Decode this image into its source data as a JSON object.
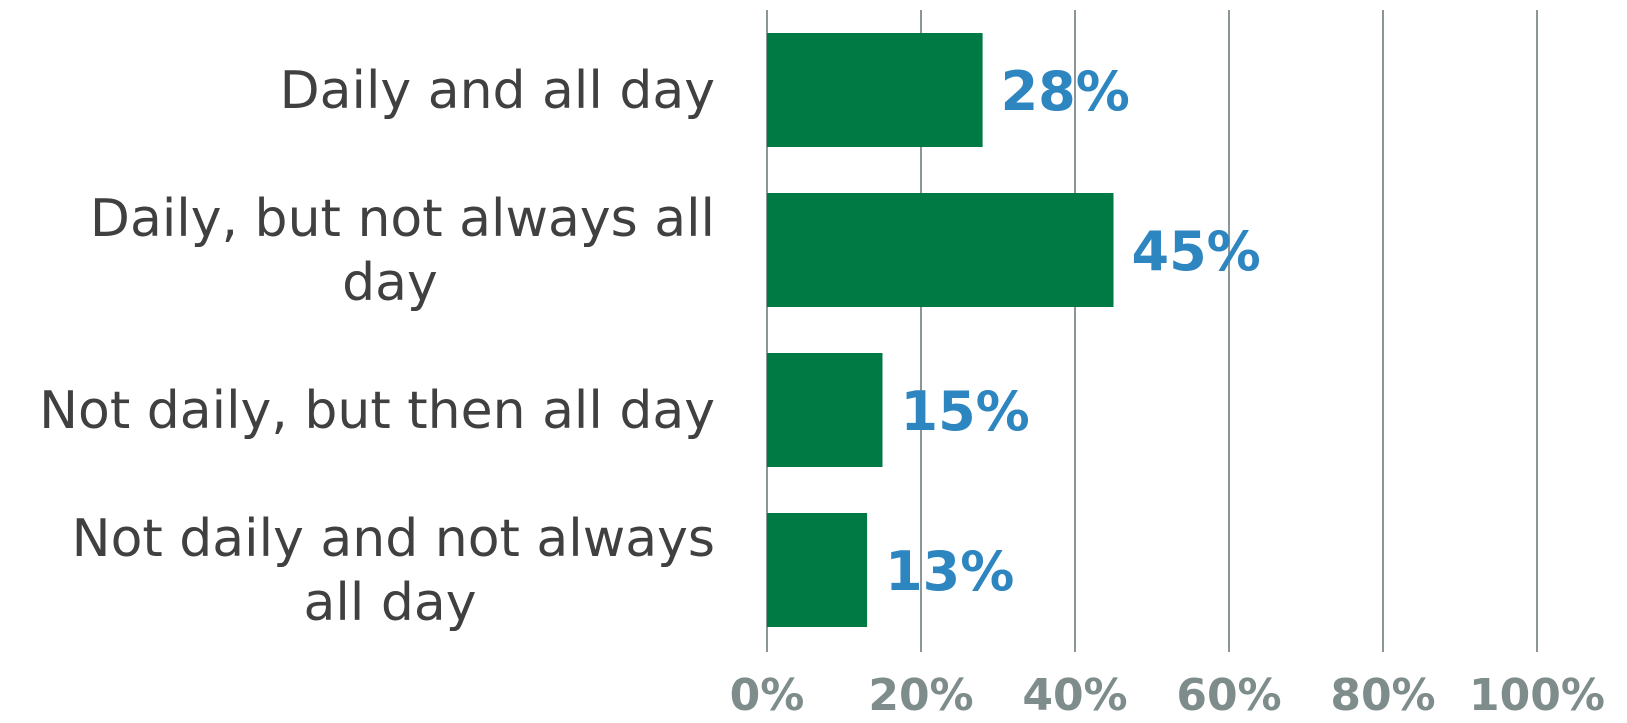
{
  "chart_data": {
    "type": "bar",
    "orientation": "horizontal",
    "title": "",
    "xlabel": "",
    "ylabel": "",
    "categories": [
      "Daily and all day",
      "Daily, but not always all day",
      "Not daily, but then all day",
      "Not daily and not always all day"
    ],
    "category_lines": [
      [
        "Daily and all day"
      ],
      [
        "Daily, but not always all",
        "day"
      ],
      [
        "Not daily, but then all day"
      ],
      [
        "Not daily and not always",
        "all day"
      ]
    ],
    "values": [
      28,
      45,
      15,
      13
    ],
    "value_labels": [
      "28%",
      "45%",
      "15%",
      "13%"
    ],
    "xlim": [
      0,
      100
    ],
    "x_ticks": [
      0,
      20,
      40,
      60,
      80,
      100
    ],
    "x_tick_labels": [
      "0%",
      "20%",
      "40%",
      "60%",
      "80%",
      "100%"
    ],
    "grid": true,
    "legend": "none",
    "colors": {
      "bar": "#007a45",
      "value_label": "#2e86c1",
      "grid": "#8c9696",
      "tick_label": "#7f8c8c",
      "category_label": "#404040"
    }
  }
}
